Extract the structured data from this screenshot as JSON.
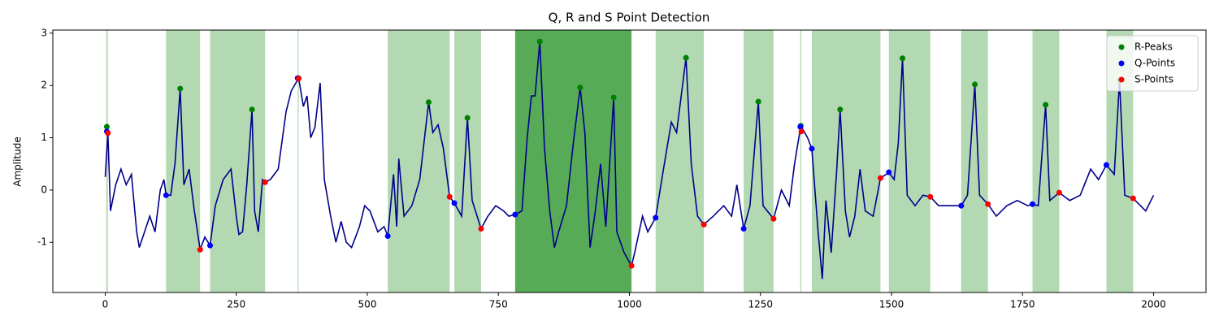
{
  "chart_data": {
    "type": "line",
    "title": "Q, R and S Point Detection",
    "ylabel": "Amplitude",
    "xlim": [
      -100,
      2100
    ],
    "ylim": [
      -1.96,
      3.06
    ],
    "xticks": [
      0,
      250,
      500,
      750,
      1000,
      1250,
      1500,
      1750,
      2000
    ],
    "yticks": [
      -1,
      0,
      1,
      2,
      3
    ],
    "legend": "upper right",
    "span_color": "#008000",
    "spans": [
      {
        "x0": 2,
        "x1": 5,
        "opacity": 0.3
      },
      {
        "x0": 116,
        "x1": 181,
        "opacity": 0.3
      },
      {
        "x0": 200,
        "x1": 305,
        "opacity": 0.3
      },
      {
        "x0": 367,
        "x1": 369,
        "opacity": 0.3
      },
      {
        "x0": 539,
        "x1": 657,
        "opacity": 0.3
      },
      {
        "x0": 666,
        "x1": 717,
        "opacity": 0.3
      },
      {
        "x0": 782,
        "x1": 1004,
        "opacity": 0.66
      },
      {
        "x0": 1050,
        "x1": 1142,
        "opacity": 0.3
      },
      {
        "x0": 1218,
        "x1": 1275,
        "opacity": 0.3
      },
      {
        "x0": 1326,
        "x1": 1328,
        "opacity": 0.3
      },
      {
        "x0": 1348,
        "x1": 1479,
        "opacity": 0.3
      },
      {
        "x0": 1495,
        "x1": 1574,
        "opacity": 0.3
      },
      {
        "x0": 1633,
        "x1": 1684,
        "opacity": 0.3
      },
      {
        "x0": 1769,
        "x1": 1820,
        "opacity": 0.3
      },
      {
        "x0": 1910,
        "x1": 1961,
        "opacity": 0.3
      }
    ],
    "signal": {
      "color": "#00008b",
      "x": [
        0,
        5,
        10,
        20,
        30,
        40,
        50,
        60,
        65,
        75,
        85,
        95,
        105,
        112,
        116,
        125,
        133,
        143,
        150,
        160,
        170,
        181,
        190,
        200,
        210,
        225,
        240,
        250,
        255,
        262,
        270,
        280,
        285,
        292,
        300,
        305,
        315,
        330,
        345,
        355,
        369,
        378,
        385,
        392,
        400,
        410,
        418,
        430,
        440,
        450,
        460,
        470,
        485,
        495,
        505,
        520,
        532,
        539,
        550,
        556,
        560,
        570,
        585,
        600,
        617,
        625,
        635,
        645,
        657,
        666,
        680,
        691,
        700,
        717,
        730,
        745,
        760,
        770,
        782,
        795,
        805,
        813,
        820,
        829,
        838,
        848,
        857,
        865,
        880,
        893,
        906,
        915,
        925,
        935,
        945,
        955,
        970,
        976,
        990,
        1004,
        1010,
        1025,
        1035,
        1050,
        1065,
        1080,
        1090,
        1108,
        1118,
        1130,
        1142,
        1160,
        1180,
        1195,
        1205,
        1218,
        1230,
        1246,
        1255,
        1275,
        1290,
        1305,
        1315,
        1327,
        1340,
        1348,
        1360,
        1368,
        1375,
        1385,
        1395,
        1402,
        1412,
        1420,
        1430,
        1440,
        1450,
        1465,
        1479,
        1490,
        1495,
        1505,
        1513,
        1521,
        1530,
        1545,
        1560,
        1574,
        1590,
        1610,
        1633,
        1645,
        1659,
        1668,
        1684,
        1700,
        1720,
        1740,
        1760,
        1769,
        1780,
        1794,
        1802,
        1820,
        1840,
        1860,
        1880,
        1895,
        1910,
        1925,
        1935,
        1945,
        1961,
        1975,
        1985,
        2000
      ],
      "values": [
        0.25,
        1.1,
        -0.4,
        0.1,
        0.4,
        0.1,
        0.3,
        -0.8,
        -1.1,
        -0.8,
        -0.5,
        -0.8,
        0.0,
        0.2,
        -0.1,
        -0.1,
        0.5,
        1.94,
        0.1,
        0.4,
        -0.4,
        -1.14,
        -0.9,
        -1.06,
        -0.3,
        0.2,
        0.4,
        -0.5,
        -0.85,
        -0.8,
        0.1,
        1.54,
        -0.4,
        -0.8,
        0.2,
        0.15,
        0.2,
        0.4,
        1.5,
        1.9,
        2.14,
        1.6,
        1.8,
        1.0,
        1.2,
        2.05,
        0.2,
        -0.5,
        -1.0,
        -0.6,
        -1.0,
        -1.1,
        -0.7,
        -0.3,
        -0.4,
        -0.8,
        -0.7,
        -0.88,
        0.3,
        -0.7,
        0.6,
        -0.5,
        -0.3,
        0.2,
        1.68,
        1.1,
        1.25,
        0.8,
        -0.13,
        -0.25,
        -0.5,
        1.38,
        -0.2,
        -0.74,
        -0.5,
        -0.3,
        -0.4,
        -0.5,
        -0.47,
        -0.4,
        1.0,
        1.8,
        1.8,
        2.84,
        0.8,
        -0.4,
        -1.1,
        -0.8,
        -0.3,
        0.9,
        1.96,
        1.1,
        -1.1,
        -0.4,
        0.5,
        -0.7,
        1.77,
        -0.8,
        -1.2,
        -1.45,
        -1.2,
        -0.5,
        -0.8,
        -0.53,
        0.4,
        1.3,
        1.1,
        2.53,
        0.5,
        -0.5,
        -0.66,
        -0.5,
        -0.3,
        -0.5,
        0.1,
        -0.74,
        -0.3,
        1.69,
        -0.3,
        -0.55,
        0.0,
        -0.3,
        0.5,
        1.23,
        1.0,
        0.79,
        -0.8,
        -1.7,
        -0.2,
        -1.2,
        0.3,
        1.54,
        -0.4,
        -0.9,
        -0.5,
        0.4,
        -0.4,
        -0.5,
        0.23,
        0.3,
        0.34,
        0.2,
        0.9,
        2.52,
        -0.1,
        -0.3,
        -0.1,
        -0.13,
        -0.3,
        -0.3,
        -0.3,
        -0.1,
        2.02,
        -0.1,
        -0.27,
        -0.5,
        -0.3,
        -0.2,
        -0.3,
        -0.27,
        -0.3,
        1.63,
        -0.2,
        -0.05,
        -0.2,
        -0.1,
        0.4,
        0.2,
        0.48,
        0.3,
        2.1,
        -0.1,
        -0.16,
        -0.3,
        -0.4,
        -0.1
      ]
    },
    "series": [
      {
        "name": "R-Peaks",
        "color": "#008000",
        "x": [
          3,
          143,
          280,
          369,
          617,
          691,
          829,
          906,
          970,
          1108,
          1246,
          1327,
          1402,
          1521,
          1659,
          1794,
          1935
        ],
        "values": [
          1.21,
          1.94,
          1.54,
          2.14,
          1.68,
          1.38,
          2.84,
          1.96,
          1.77,
          2.53,
          1.69,
          1.23,
          1.54,
          2.52,
          2.02,
          1.63,
          2.1
        ]
      },
      {
        "name": "Q-Points",
        "color": "#0000ff",
        "x": [
          3,
          116,
          200,
          367,
          539,
          666,
          782,
          1050,
          1218,
          1326,
          1348,
          1495,
          1633,
          1769,
          1910
        ],
        "values": [
          1.12,
          -0.1,
          -1.06,
          2.14,
          -0.88,
          -0.25,
          -0.47,
          -0.53,
          -0.74,
          1.21,
          0.79,
          0.34,
          -0.3,
          -0.27,
          0.48
        ]
      },
      {
        "name": "S-Points",
        "color": "#ff0000",
        "x": [
          5,
          181,
          305,
          369,
          657,
          717,
          1004,
          1142,
          1275,
          1328,
          1479,
          1574,
          1684,
          1820,
          1961
        ],
        "values": [
          1.09,
          -1.14,
          0.15,
          2.13,
          -0.13,
          -0.74,
          -1.45,
          -0.66,
          -0.55,
          1.12,
          0.23,
          -0.13,
          -0.27,
          -0.05,
          -0.16
        ]
      }
    ]
  }
}
